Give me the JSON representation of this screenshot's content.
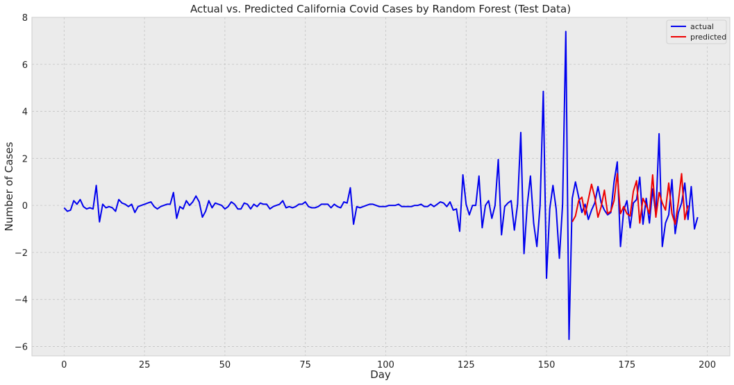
{
  "chart_data": {
    "type": "line",
    "title": "Actual vs. Predicted California Covid Cases by Random Forest (Test Data)",
    "xlabel": "Day",
    "ylabel": "Number of Cases",
    "xlim": [
      -10,
      207
    ],
    "ylim": [
      -6.4,
      8.0
    ],
    "xticks": [
      0,
      25,
      50,
      75,
      100,
      125,
      150,
      175,
      200
    ],
    "yticks": [
      -6,
      -4,
      -2,
      0,
      2,
      4,
      6,
      8
    ],
    "grid": true,
    "legend_position": "top-right",
    "series": [
      {
        "name": "actual",
        "color": "#0000ee",
        "x_start": 0,
        "values": [
          -0.1,
          -0.25,
          -0.2,
          0.2,
          0.05,
          0.25,
          -0.05,
          -0.15,
          -0.1,
          -0.15,
          0.85,
          -0.7,
          0.05,
          -0.1,
          -0.05,
          -0.1,
          -0.25,
          0.25,
          0.1,
          0.05,
          -0.05,
          0.05,
          -0.3,
          -0.05,
          0.0,
          0.05,
          0.1,
          0.15,
          -0.05,
          -0.15,
          -0.05,
          0.0,
          0.05,
          0.05,
          0.55,
          -0.55,
          -0.05,
          -0.15,
          0.2,
          0.0,
          0.15,
          0.4,
          0.15,
          -0.5,
          -0.25,
          0.2,
          -0.1,
          0.1,
          0.05,
          0.0,
          -0.15,
          -0.05,
          0.15,
          0.05,
          -0.15,
          -0.15,
          0.1,
          0.05,
          -0.15,
          0.05,
          -0.05,
          0.1,
          0.05,
          0.05,
          -0.15,
          -0.05,
          0.0,
          0.05,
          0.2,
          -0.1,
          -0.05,
          -0.1,
          -0.05,
          0.05,
          0.05,
          0.15,
          -0.05,
          -0.1,
          -0.1,
          -0.05,
          0.05,
          0.05,
          0.05,
          -0.1,
          0.05,
          -0.05,
          -0.1,
          0.15,
          0.1,
          0.75,
          -0.8,
          -0.05,
          -0.1,
          -0.05,
          0.0,
          0.05,
          0.05,
          0.0,
          -0.05,
          -0.05,
          -0.05,
          0.0,
          0.0,
          0.0,
          0.05,
          -0.05,
          -0.05,
          -0.05,
          -0.05,
          0.0,
          0.0,
          0.05,
          -0.05,
          -0.05,
          0.05,
          -0.05,
          0.05,
          0.15,
          0.1,
          -0.05,
          0.15,
          -0.2,
          -0.15,
          -1.1,
          1.3,
          0.05,
          -0.4,
          0.0,
          0.0,
          1.25,
          -0.95,
          0.0,
          0.2,
          -0.55,
          0.0,
          1.95,
          -1.25,
          -0.05,
          0.1,
          0.2,
          -1.05,
          0.05,
          3.1,
          -2.05,
          0.0,
          1.25,
          -0.75,
          -1.75,
          0.0,
          4.85,
          -3.1,
          -0.15,
          0.85,
          -0.15,
          -2.25,
          0.05,
          7.4,
          -5.7,
          0.3,
          1.0,
          0.35,
          -0.3,
          0.05,
          -0.6,
          -0.2,
          0.1,
          0.8,
          0.1,
          -0.2,
          -0.4,
          -0.3,
          1.0,
          1.85,
          -1.75,
          -0.2,
          0.2,
          -0.95,
          0.1,
          0.25,
          1.2,
          -0.8,
          0.3,
          -0.75,
          0.7,
          -0.4,
          3.05,
          -1.75,
          -0.75,
          -0.4,
          1.1,
          -1.2,
          -0.3,
          0.1,
          0.95,
          -0.6,
          0.8,
          -1.0,
          -0.5
        ]
      },
      {
        "name": "predicted",
        "color": "#ee0000",
        "x_start": 158,
        "values": [
          -0.7,
          -0.45,
          0.2,
          0.35,
          -0.4,
          0.25,
          0.9,
          0.35,
          -0.5,
          -0.05,
          0.65,
          -0.35,
          -0.25,
          0.2,
          1.35,
          -0.35,
          -0.05,
          -0.35,
          -0.45,
          0.6,
          1.05,
          -0.75,
          0.3,
          0.0,
          -0.35,
          1.3,
          -0.5,
          0.55,
          0.1,
          -0.2,
          0.95,
          -0.35,
          -0.8,
          0.15,
          1.35,
          -0.6,
          0.0
        ]
      }
    ]
  }
}
